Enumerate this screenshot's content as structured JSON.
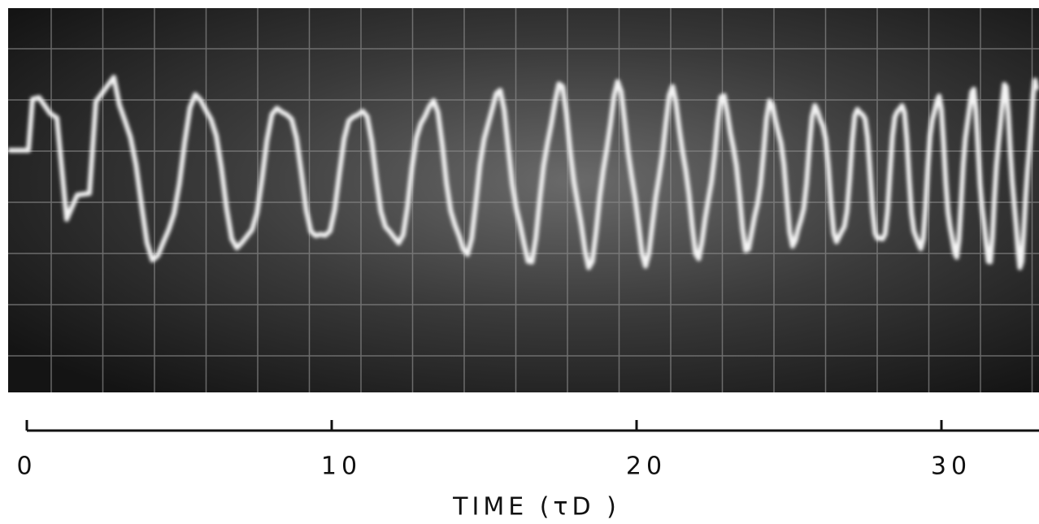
{
  "chart_data": {
    "type": "line",
    "xlabel": "TIME (τD )",
    "xlim": [
      0,
      33.2
    ],
    "xticks": [
      0,
      10,
      20,
      30
    ]
  }
}
